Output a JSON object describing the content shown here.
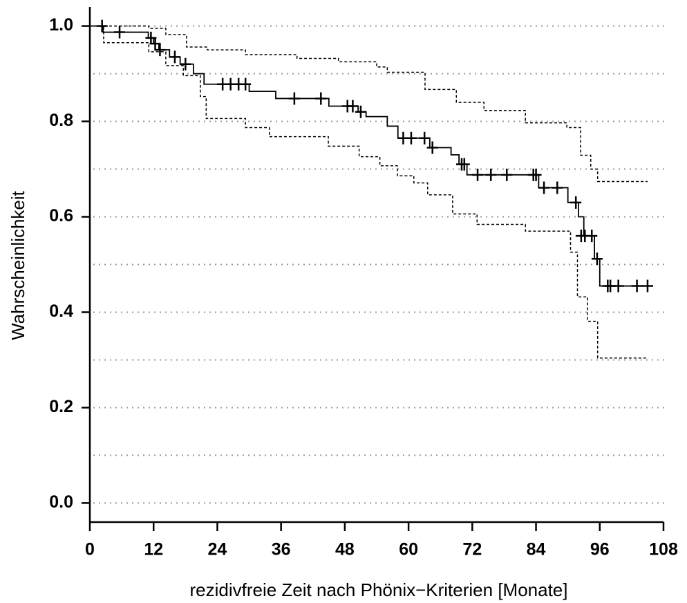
{
  "chart_data": {
    "type": "step",
    "xlabel": "rezidivfreie Zeit nach Phönix−Kriterien [Monate]",
    "ylabel": "Wahrscheinlichkeit",
    "xlim": [
      0,
      108
    ],
    "xticks": [
      0,
      12,
      24,
      36,
      48,
      60,
      72,
      84,
      96,
      108
    ],
    "ylim": [
      -0.04,
      1.04
    ],
    "yticks": [
      {
        "value": 0,
        "label": "0.0"
      },
      0.2,
      0.4,
      0.6,
      0.8,
      {
        "value": 1,
        "label": "1.0"
      }
    ],
    "grid_y": [
      0,
      0.1,
      0.2,
      0.3,
      0.4,
      0.5,
      0.6,
      0.7,
      0.8,
      0.9,
      1
    ],
    "grid": true,
    "series": [
      {
        "color": "#000000",
        "style": "solid",
        "x": [
          0,
          2.5,
          11,
          12,
          13,
          15,
          17,
          19.5,
          21.5,
          30,
          35,
          45,
          50.5,
          52,
          56,
          58,
          64,
          68,
          69.5,
          71,
          84.5,
          90,
          92,
          93,
          95,
          96,
          105.4
        ],
        "values": [
          1,
          0.987,
          0.975,
          0.963,
          0.95,
          0.935,
          0.92,
          0.9,
          0.878,
          0.863,
          0.848,
          0.832,
          0.82,
          0.81,
          0.79,
          0.765,
          0.745,
          0.73,
          0.71,
          0.688,
          0.661,
          0.63,
          0.6,
          0.56,
          0.512,
          0.455,
          0.455
        ]
      },
      {
        "color": "#000000",
        "style": "dashed",
        "x": [
          0,
          11.1,
          14.3,
          18.2,
          22.1,
          29.3,
          39,
          46.8,
          54,
          56,
          63.1,
          69,
          74.2,
          82,
          89.8,
          92.4,
          94.3,
          95.6,
          105
        ],
        "values": [
          1,
          0.995,
          0.982,
          0.956,
          0.95,
          0.94,
          0.932,
          0.925,
          0.914,
          0.903,
          0.867,
          0.84,
          0.823,
          0.797,
          0.787,
          0.729,
          0.7,
          0.674,
          0.674
        ]
      },
      {
        "color": "#000000",
        "style": "dashed",
        "x": [
          0,
          2.6,
          11.1,
          14.3,
          17.6,
          20.8,
          21.9,
          29.3,
          33.8,
          44.9,
          50.7,
          54.6,
          57.9,
          61,
          63.6,
          68.3,
          72.9,
          82,
          90.5,
          91.8,
          93.7,
          95.6,
          105
        ],
        "values": [
          1,
          0.965,
          0.946,
          0.917,
          0.896,
          0.852,
          0.806,
          0.787,
          0.768,
          0.748,
          0.726,
          0.707,
          0.686,
          0.671,
          0.646,
          0.606,
          0.584,
          0.57,
          0.526,
          0.432,
          0.381,
          0.304,
          0.304
        ]
      },
      {
        "color": "#000000",
        "marker": "plus",
        "x": [
          2.3,
          5.6,
          11.5,
          12.3,
          13.2,
          16,
          18,
          25,
          26.5,
          28,
          29.3,
          38.5,
          43.5,
          48.5,
          49.5,
          51,
          59,
          60.5,
          63,
          64.5,
          70,
          70.5,
          73,
          75.5,
          78.5,
          83.5,
          84,
          85.5,
          88,
          91.5,
          92.5,
          93.2,
          94.5,
          95.5,
          97.5,
          98,
          99.5,
          103,
          105
        ],
        "values": [
          1,
          0.987,
          0.975,
          0.963,
          0.95,
          0.935,
          0.92,
          0.878,
          0.878,
          0.878,
          0.878,
          0.848,
          0.848,
          0.832,
          0.832,
          0.82,
          0.765,
          0.765,
          0.765,
          0.745,
          0.71,
          0.71,
          0.688,
          0.688,
          0.688,
          0.688,
          0.688,
          0.661,
          0.661,
          0.63,
          0.56,
          0.56,
          0.56,
          0.512,
          0.455,
          0.455,
          0.455,
          0.455,
          0.455
        ]
      }
    ]
  }
}
